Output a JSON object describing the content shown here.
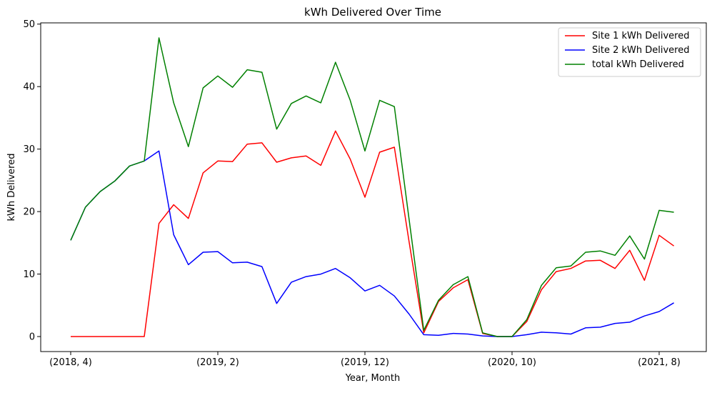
{
  "chart_data": {
    "type": "line",
    "title": "kWh Delivered Over Time",
    "xlabel": "Year, Month",
    "ylabel": "kWh Delivered",
    "ylim": [
      -2.4,
      50.2
    ],
    "y_ticks": [
      0,
      10,
      20,
      30,
      40,
      50
    ],
    "x_ticks": [
      {
        "label": "(2018, 4)",
        "index": 0
      },
      {
        "label": "(2019, 2)",
        "index": 10
      },
      {
        "label": "(2019, 12)",
        "index": 20
      },
      {
        "label": "(2020, 10)",
        "index": 30
      },
      {
        "label": "(2021, 8)",
        "index": 40
      }
    ],
    "x": [
      "(2018, 4)",
      "(2018, 5)",
      "(2018, 6)",
      "(2018, 7)",
      "(2018, 8)",
      "(2018, 9)",
      "(2018, 10)",
      "(2018, 11)",
      "(2018, 12)",
      "(2019, 1)",
      "(2019, 2)",
      "(2019, 3)",
      "(2019, 4)",
      "(2019, 5)",
      "(2019, 6)",
      "(2019, 7)",
      "(2019, 8)",
      "(2019, 9)",
      "(2019, 10)",
      "(2019, 11)",
      "(2019, 12)",
      "(2020, 1)",
      "(2020, 2)",
      "(2020, 3)",
      "(2020, 4)",
      "(2020, 5)",
      "(2020, 6)",
      "(2020, 7)",
      "(2020, 8)",
      "(2020, 9)",
      "(2020, 10)",
      "(2020, 11)",
      "(2020, 12)",
      "(2021, 1)",
      "(2021, 2)",
      "(2021, 3)",
      "(2021, 4)",
      "(2021, 5)",
      "(2021, 6)",
      "(2021, 7)",
      "(2021, 8)",
      "(2021, 9)"
    ],
    "grid": false,
    "legend_position": "top-right",
    "series": [
      {
        "name": "Site 1 kWh Delivered",
        "color": "#ff0000",
        "values": [
          0,
          0,
          0,
          0,
          0,
          0,
          18.1,
          21.1,
          18.9,
          26.2,
          28.1,
          28.0,
          30.8,
          31.0,
          27.9,
          28.6,
          28.9,
          27.4,
          32.9,
          28.4,
          22.3,
          29.5,
          30.3,
          15.2,
          0.6,
          5.6,
          7.8,
          9.1,
          0.5,
          0,
          0,
          2.4,
          7.5,
          10.4,
          10.9,
          12.1,
          12.2,
          10.9,
          13.8,
          9.0,
          16.2,
          14.5
        ]
      },
      {
        "name": "Site 2 kWh Delivered",
        "color": "#0000ff",
        "values": [
          15.4,
          20.7,
          23.2,
          24.9,
          27.3,
          28.1,
          29.7,
          16.3,
          11.5,
          13.5,
          13.6,
          11.8,
          11.9,
          11.2,
          5.3,
          8.7,
          9.6,
          10.0,
          10.9,
          9.4,
          7.3,
          8.2,
          6.5,
          3.6,
          0.3,
          0.2,
          0.5,
          0.4,
          0.1,
          0,
          0,
          0.3,
          0.7,
          0.6,
          0.4,
          1.4,
          1.5,
          2.1,
          2.3,
          3.3,
          4.0,
          5.4
        ]
      },
      {
        "name": "total kWh Delivered",
        "color": "#008000",
        "values": [
          15.4,
          20.7,
          23.2,
          24.9,
          27.3,
          28.1,
          47.8,
          37.4,
          30.4,
          39.8,
          41.7,
          39.9,
          42.7,
          42.3,
          33.2,
          37.3,
          38.5,
          37.4,
          43.9,
          37.8,
          29.7,
          37.8,
          36.8,
          18.8,
          1.0,
          5.8,
          8.3,
          9.6,
          0.6,
          0,
          0,
          2.7,
          8.2,
          11.0,
          11.3,
          13.5,
          13.7,
          13.0,
          16.1,
          12.4,
          20.2,
          19.9
        ]
      }
    ]
  }
}
